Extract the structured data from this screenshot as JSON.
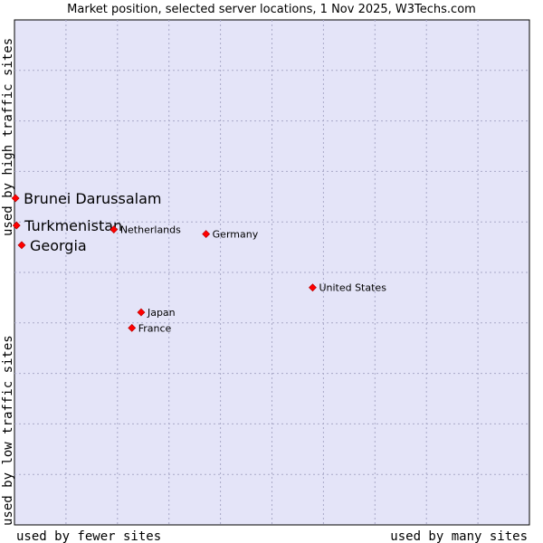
{
  "chart_data": {
    "type": "scatter",
    "title": "Market position, selected server locations, 1 Nov 2025, W3Techs.com",
    "xlabel_left": "used by fewer sites",
    "xlabel_right": "used by many sites",
    "ylabel_bottom": "used by low traffic sites",
    "ylabel_top": "used by high traffic sites",
    "xlim": [
      0,
      100
    ],
    "ylim": [
      0,
      100
    ],
    "grid": true,
    "point_color": "#ff0000",
    "plot_bg": "#e4e4f8",
    "points": [
      {
        "label": "Brunei Darussalam",
        "x": 0.2,
        "y": 64.7,
        "emphasis": true
      },
      {
        "label": "Turkmenistan",
        "x": 0.4,
        "y": 59.3,
        "emphasis": true
      },
      {
        "label": "Georgia",
        "x": 1.4,
        "y": 55.4,
        "emphasis": true
      },
      {
        "label": "Netherlands",
        "x": 19.3,
        "y": 58.5,
        "emphasis": false
      },
      {
        "label": "Germany",
        "x": 37.2,
        "y": 57.6,
        "emphasis": false
      },
      {
        "label": "United States",
        "x": 57.9,
        "y": 47.0,
        "emphasis": false
      },
      {
        "label": "Japan",
        "x": 24.6,
        "y": 42.1,
        "emphasis": false
      },
      {
        "label": "France",
        "x": 22.8,
        "y": 39.0,
        "emphasis": false
      }
    ]
  }
}
